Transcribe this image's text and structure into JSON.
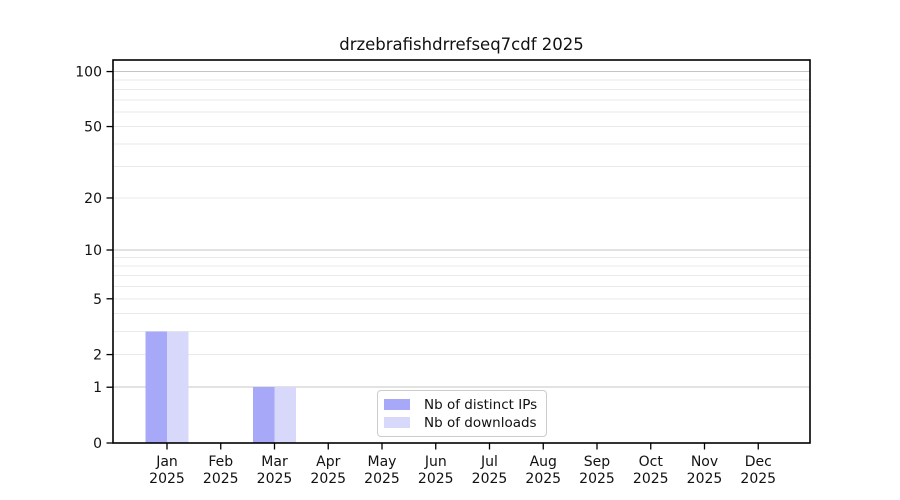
{
  "title": "drzebrafishdrrefseq7cdf 2025",
  "colors": {
    "background": "#ffffff",
    "axis": "#000000",
    "tick_text": "#111111",
    "grid_major": "#c4c4c4",
    "grid_minor": "#eaeaea",
    "legend_border": "#cccccc",
    "distinct_ips_bar": "#a8a8f8",
    "downloads_bar": "#d8d8fa"
  },
  "chart_data": {
    "type": "bar",
    "title": "drzebrafishdrrefseq7cdf 2025",
    "categories": [
      "Jan",
      "Feb",
      "Mar",
      "Apr",
      "May",
      "Jun",
      "Jul",
      "Aug",
      "Sep",
      "Oct",
      "Nov",
      "Dec"
    ],
    "x_year": "2025",
    "series": [
      {
        "name": "Nb of distinct IPs",
        "color": "#a8a8f8",
        "values": [
          3,
          0,
          1,
          0,
          0,
          0,
          0,
          0,
          0,
          0,
          0,
          0
        ]
      },
      {
        "name": "Nb of downloads",
        "color": "#d8d8fa",
        "values": [
          3,
          0,
          1,
          0,
          0,
          0,
          0,
          0,
          0,
          0,
          0,
          0
        ]
      }
    ],
    "y_scale": "log1p",
    "ylim": [
      0,
      115.6
    ],
    "y_ticks": [
      0,
      1,
      2,
      5,
      10,
      20,
      50,
      100
    ],
    "y_major_grid": [
      1,
      10,
      100
    ],
    "y_minor_grid": [
      2,
      3,
      4,
      5,
      6,
      7,
      8,
      9,
      20,
      30,
      40,
      50,
      60,
      70,
      80,
      90
    ],
    "grid": "on",
    "legend_position": "bottom-center"
  }
}
